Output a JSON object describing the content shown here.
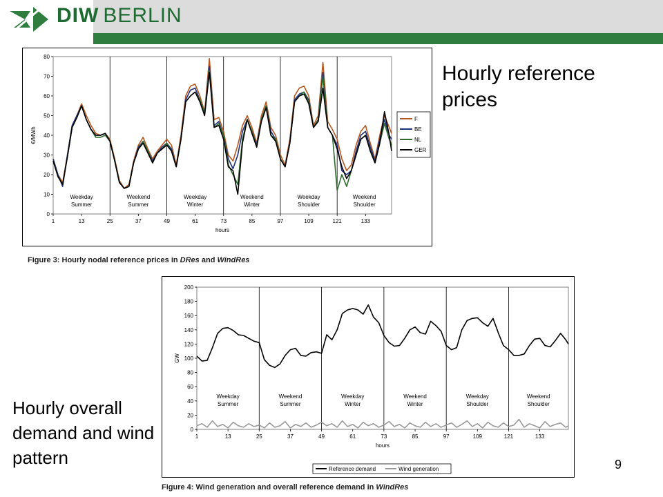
{
  "header": {
    "logo_bold": "DIW",
    "logo_light": "BERLIN"
  },
  "slide": {
    "title_right": "Hourly reference prices",
    "title_left": "Hourly overall demand and wind pattern",
    "page_number": "9"
  },
  "captions": {
    "fig3_prefix": "Figure 3: Hourly nodal reference prices in ",
    "fig3_em1": "DRes",
    "fig3_mid": " and ",
    "fig3_em2": "WindRes",
    "fig4_prefix": "Figure 4: Wind generation and overall reference demand in ",
    "fig4_em": "WindRes"
  },
  "colors": {
    "F": "#b5561f",
    "BE": "#1f2f7f",
    "NL": "#2d6b2d",
    "GER": "#000000",
    "reference_demand": "#000000",
    "wind_generation": "#999999",
    "brand_green": "#2f7d3f"
  },
  "chart_data": [
    {
      "type": "line",
      "ylabel": "€/MWh",
      "xlabel": "hours",
      "ylim": [
        0,
        80
      ],
      "yticks": [
        0,
        10,
        20,
        30,
        40,
        50,
        60,
        70,
        80
      ],
      "xlim": [
        1,
        144
      ],
      "xticks": [
        1,
        13,
        25,
        37,
        49,
        61,
        73,
        85,
        97,
        109,
        121,
        133
      ],
      "segment_boundaries": [
        25,
        49,
        73,
        97,
        121
      ],
      "segment_labels": [
        [
          "Weekday",
          "Summer"
        ],
        [
          "Weekend",
          "Summer"
        ],
        [
          "Weekday",
          "Winter"
        ],
        [
          "Weekend",
          "Winter"
        ],
        [
          "Weekday",
          "Shoulder"
        ],
        [
          "Weekend",
          "Shoulder"
        ]
      ],
      "grid": false,
      "legend": "right",
      "series": [
        {
          "name": "F",
          "color": "#b5561f",
          "x": [
            1,
            3,
            5,
            7,
            9,
            11,
            13,
            15,
            17,
            19,
            21,
            23,
            25,
            27,
            29,
            31,
            33,
            35,
            37,
            39,
            41,
            43,
            45,
            47,
            49,
            51,
            53,
            55,
            57,
            59,
            61,
            63,
            65,
            67,
            69,
            71,
            73,
            75,
            77,
            79,
            81,
            83,
            85,
            87,
            89,
            91,
            93,
            95,
            97,
            99,
            101,
            103,
            105,
            107,
            109,
            111,
            113,
            115,
            117,
            119,
            121,
            123,
            125,
            127,
            129,
            131,
            133,
            135,
            137,
            139,
            141,
            143,
            144
          ],
          "y": [
            28,
            20,
            16,
            30,
            45,
            50,
            56,
            50,
            45,
            41,
            40,
            41,
            38,
            28,
            17,
            13,
            15,
            27,
            35,
            39,
            33,
            28,
            32,
            35,
            38,
            35,
            25,
            40,
            60,
            65,
            66,
            60,
            52,
            79,
            48,
            49,
            42,
            30,
            27,
            35,
            45,
            50,
            44,
            36,
            50,
            57,
            44,
            40,
            30,
            25,
            38,
            60,
            64,
            65,
            60,
            45,
            50,
            77,
            47,
            43,
            38,
            28,
            22,
            25,
            35,
            42,
            45,
            36,
            28,
            40,
            50,
            44,
            41
          ]
        },
        {
          "name": "BE",
          "color": "#1f2f7f",
          "x": [
            1,
            3,
            5,
            7,
            9,
            11,
            13,
            15,
            17,
            19,
            21,
            23,
            25,
            27,
            29,
            31,
            33,
            35,
            37,
            39,
            41,
            43,
            45,
            47,
            49,
            51,
            53,
            55,
            57,
            59,
            61,
            63,
            65,
            67,
            69,
            71,
            73,
            75,
            77,
            79,
            81,
            83,
            85,
            87,
            89,
            91,
            93,
            95,
            97,
            99,
            101,
            103,
            105,
            107,
            109,
            111,
            113,
            115,
            117,
            119,
            121,
            123,
            125,
            127,
            129,
            131,
            133,
            135,
            137,
            139,
            141,
            143,
            144
          ],
          "y": [
            28,
            20,
            14,
            30,
            45,
            50,
            55,
            48,
            43,
            40,
            40,
            41,
            37,
            27,
            16,
            13,
            14,
            26,
            34,
            37,
            32,
            27,
            31,
            34,
            36,
            33,
            24,
            38,
            58,
            63,
            64,
            58,
            51,
            75,
            45,
            47,
            40,
            28,
            23,
            30,
            42,
            48,
            42,
            35,
            48,
            55,
            42,
            38,
            28,
            24,
            36,
            58,
            61,
            62,
            58,
            44,
            48,
            72,
            44,
            40,
            35,
            22,
            20,
            22,
            32,
            40,
            42,
            34,
            27,
            38,
            48,
            40,
            38
          ]
        },
        {
          "name": "NL",
          "color": "#2d6b2d",
          "x": [
            1,
            3,
            5,
            7,
            9,
            11,
            13,
            15,
            17,
            19,
            21,
            23,
            25,
            27,
            29,
            31,
            33,
            35,
            37,
            39,
            41,
            43,
            45,
            47,
            49,
            51,
            53,
            55,
            57,
            59,
            61,
            63,
            65,
            67,
            69,
            71,
            73,
            75,
            77,
            79,
            81,
            83,
            85,
            87,
            89,
            91,
            93,
            95,
            97,
            99,
            101,
            103,
            105,
            107,
            109,
            111,
            113,
            115,
            117,
            119,
            121,
            123,
            125,
            127,
            129,
            131,
            133,
            135,
            137,
            139,
            141,
            143,
            144
          ],
          "y": [
            27,
            19,
            15,
            29,
            44,
            49,
            55,
            48,
            43,
            39,
            39,
            40,
            37,
            27,
            16,
            13,
            14,
            26,
            33,
            37,
            32,
            26,
            31,
            33,
            36,
            32,
            24,
            38,
            57,
            60,
            62,
            58,
            51,
            73,
            44,
            46,
            40,
            25,
            20,
            15,
            38,
            48,
            42,
            34,
            48,
            55,
            40,
            38,
            28,
            24,
            36,
            57,
            60,
            62,
            57,
            44,
            48,
            70,
            44,
            40,
            12,
            20,
            14,
            22,
            30,
            38,
            40,
            32,
            26,
            36,
            46,
            38,
            35
          ]
        },
        {
          "name": "GER",
          "color": "#000000",
          "x": [
            1,
            3,
            5,
            7,
            9,
            11,
            13,
            15,
            17,
            19,
            21,
            23,
            25,
            27,
            29,
            31,
            33,
            35,
            37,
            39,
            41,
            43,
            45,
            47,
            49,
            51,
            53,
            55,
            57,
            59,
            61,
            63,
            65,
            67,
            69,
            71,
            73,
            75,
            77,
            79,
            81,
            83,
            85,
            87,
            89,
            91,
            93,
            95,
            97,
            99,
            101,
            103,
            105,
            107,
            109,
            111,
            113,
            115,
            117,
            119,
            121,
            123,
            125,
            127,
            129,
            131,
            133,
            135,
            137,
            139,
            141,
            143,
            144
          ],
          "y": [
            27,
            19,
            15,
            29,
            44,
            49,
            55,
            48,
            43,
            40,
            40,
            41,
            37,
            27,
            16,
            13,
            14,
            26,
            33,
            36,
            31,
            26,
            31,
            33,
            35,
            32,
            24,
            38,
            57,
            60,
            62,
            57,
            50,
            72,
            44,
            45,
            38,
            24,
            22,
            10,
            36,
            48,
            41,
            34,
            47,
            54,
            40,
            37,
            28,
            24,
            36,
            57,
            60,
            61,
            56,
            44,
            47,
            64,
            44,
            40,
            33,
            24,
            18,
            22,
            30,
            38,
            40,
            32,
            26,
            36,
            52,
            40,
            32
          ]
        }
      ]
    },
    {
      "type": "line",
      "ylabel": "GW",
      "xlabel": "hours",
      "ylim": [
        0,
        200
      ],
      "yticks": [
        0,
        20,
        40,
        60,
        80,
        100,
        120,
        140,
        160,
        180,
        200
      ],
      "xlim": [
        1,
        144
      ],
      "xticks": [
        1,
        13,
        25,
        37,
        49,
        61,
        73,
        85,
        97,
        109,
        121,
        133
      ],
      "segment_boundaries": [
        25,
        49,
        73,
        97,
        121
      ],
      "segment_labels": [
        [
          "Weekday",
          "Summer"
        ],
        [
          "Weekend",
          "Summer"
        ],
        [
          "Weekday",
          "Winter"
        ],
        [
          "Weekend",
          "Winter"
        ],
        [
          "Weekday",
          "Shoulder"
        ],
        [
          "Weekend",
          "Shoulder"
        ]
      ],
      "grid": false,
      "legend": "bottom",
      "series": [
        {
          "name": "Reference demand",
          "color": "#000000",
          "x": [
            1,
            3,
            5,
            7,
            9,
            11,
            13,
            15,
            17,
            19,
            21,
            23,
            25,
            27,
            29,
            31,
            33,
            35,
            37,
            39,
            41,
            43,
            45,
            47,
            49,
            51,
            53,
            55,
            57,
            59,
            61,
            63,
            65,
            67,
            69,
            71,
            73,
            75,
            77,
            79,
            81,
            83,
            85,
            87,
            89,
            91,
            93,
            95,
            97,
            99,
            101,
            103,
            105,
            107,
            109,
            111,
            113,
            115,
            117,
            119,
            121,
            123,
            125,
            127,
            129,
            131,
            133,
            135,
            137,
            139,
            141,
            143,
            144
          ],
          "y": [
            103,
            96,
            97,
            115,
            135,
            142,
            143,
            139,
            133,
            132,
            128,
            124,
            122,
            98,
            90,
            87,
            92,
            104,
            112,
            114,
            104,
            103,
            108,
            109,
            107,
            133,
            126,
            140,
            163,
            168,
            170,
            168,
            162,
            175,
            158,
            150,
            132,
            122,
            117,
            118,
            128,
            140,
            144,
            136,
            134,
            152,
            146,
            138,
            118,
            112,
            115,
            140,
            153,
            156,
            157,
            150,
            145,
            156,
            136,
            118,
            112,
            104,
            104,
            106,
            118,
            127,
            128,
            118,
            116,
            125,
            135,
            126,
            120
          ]
        },
        {
          "name": "Wind generation",
          "color": "#999999",
          "x": [
            1,
            3,
            5,
            7,
            9,
            11,
            13,
            15,
            17,
            19,
            21,
            23,
            25,
            27,
            29,
            31,
            33,
            35,
            37,
            39,
            41,
            43,
            45,
            47,
            49,
            51,
            53,
            55,
            57,
            59,
            61,
            63,
            65,
            67,
            69,
            71,
            73,
            75,
            77,
            79,
            81,
            83,
            85,
            87,
            89,
            91,
            93,
            95,
            97,
            99,
            101,
            103,
            105,
            107,
            109,
            111,
            113,
            115,
            117,
            119,
            121,
            123,
            125,
            127,
            129,
            131,
            133,
            135,
            137,
            139,
            141,
            143,
            144
          ],
          "y": [
            5,
            8,
            3,
            12,
            4,
            7,
            2,
            10,
            5,
            3,
            8,
            4,
            6,
            2,
            9,
            3,
            5,
            11,
            2,
            7,
            4,
            9,
            3,
            6,
            10,
            5,
            8,
            3,
            12,
            4,
            7,
            2,
            10,
            5,
            8,
            3,
            6,
            11,
            4,
            7,
            2,
            9,
            5,
            3,
            10,
            4,
            8,
            3,
            6,
            9,
            3,
            7,
            12,
            4,
            8,
            2,
            10,
            5,
            3,
            9,
            4,
            6,
            14,
            3,
            8,
            5,
            2,
            11,
            4,
            7,
            9,
            3,
            5
          ]
        }
      ]
    }
  ]
}
